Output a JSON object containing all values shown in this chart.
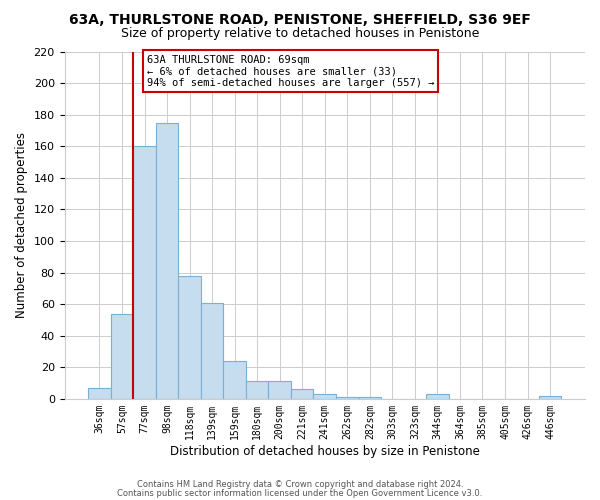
{
  "title": "63A, THURLSTONE ROAD, PENISTONE, SHEFFIELD, S36 9EF",
  "subtitle": "Size of property relative to detached houses in Penistone",
  "xlabel": "Distribution of detached houses by size in Penistone",
  "ylabel": "Number of detached properties",
  "bar_labels": [
    "36sqm",
    "57sqm",
    "77sqm",
    "98sqm",
    "118sqm",
    "139sqm",
    "159sqm",
    "180sqm",
    "200sqm",
    "221sqm",
    "241sqm",
    "262sqm",
    "282sqm",
    "303sqm",
    "323sqm",
    "344sqm",
    "364sqm",
    "385sqm",
    "405sqm",
    "426sqm",
    "446sqm"
  ],
  "bar_values": [
    7,
    54,
    160,
    175,
    78,
    61,
    24,
    11,
    11,
    6,
    3,
    1,
    1,
    0,
    0,
    3,
    0,
    0,
    0,
    0,
    2
  ],
  "bar_color": "#c6dcef",
  "bar_edge_color": "#7ab0d4",
  "vline_color": "#cc0000",
  "annotation_text": "63A THURLSTONE ROAD: 69sqm\n← 6% of detached houses are smaller (33)\n94% of semi-detached houses are larger (557) →",
  "annotation_box_color": "#ffffff",
  "annotation_box_edge": "#cc0000",
  "ylim": [
    0,
    220
  ],
  "yticks": [
    0,
    20,
    40,
    60,
    80,
    100,
    120,
    140,
    160,
    180,
    200,
    220
  ],
  "footer1": "Contains HM Land Registry data © Crown copyright and database right 2024.",
  "footer2": "Contains public sector information licensed under the Open Government Licence v3.0.",
  "bg_color": "#ffffff",
  "grid_color": "#cccccc"
}
